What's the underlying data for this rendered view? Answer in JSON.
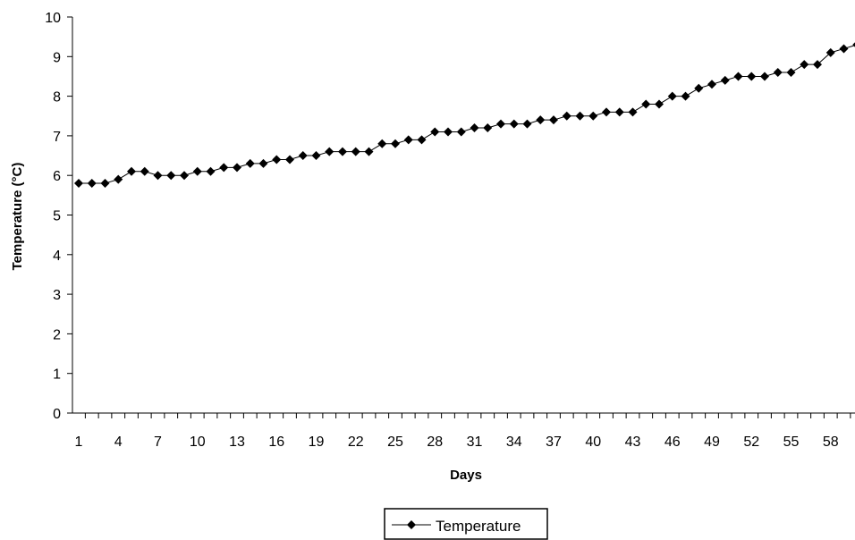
{
  "chart_data": {
    "type": "line",
    "title": "",
    "xlabel": "Days",
    "ylabel": "Temperature (°C)",
    "ylim": [
      0,
      10
    ],
    "yticks": [
      "0",
      "1",
      "2",
      "3",
      "4",
      "5",
      "6",
      "7",
      "8",
      "9",
      "10"
    ],
    "xlim": [
      1,
      60
    ],
    "xtick_values": [
      1,
      4,
      7,
      10,
      13,
      16,
      19,
      22,
      25,
      28,
      31,
      34,
      37,
      40,
      43,
      46,
      49,
      52,
      55,
      58
    ],
    "xtick_labels": [
      "1",
      "4",
      "7",
      "10",
      "13",
      "16",
      "19",
      "22",
      "25",
      "28",
      "31",
      "34",
      "37",
      "40",
      "43",
      "46",
      "49",
      "52",
      "55",
      "58"
    ],
    "grid": false,
    "legend": "bottom-center",
    "series": [
      {
        "name": "Temperature",
        "color": "#000000",
        "marker": "diamond",
        "x": [
          1,
          2,
          3,
          4,
          5,
          6,
          7,
          8,
          9,
          10,
          11,
          12,
          13,
          14,
          15,
          16,
          17,
          18,
          19,
          20,
          21,
          22,
          23,
          24,
          25,
          26,
          27,
          28,
          29,
          30,
          31,
          32,
          33,
          34,
          35,
          36,
          37,
          38,
          39,
          40,
          41,
          42,
          43,
          44,
          45,
          46,
          47,
          48,
          49,
          50,
          51,
          52,
          53,
          54,
          55,
          56,
          57,
          58,
          59,
          60
        ],
        "values": [
          5.8,
          5.8,
          5.8,
          5.9,
          6.1,
          6.1,
          6.0,
          6.0,
          6.0,
          6.1,
          6.1,
          6.2,
          6.2,
          6.3,
          6.3,
          6.4,
          6.4,
          6.5,
          6.5,
          6.6,
          6.6,
          6.6,
          6.6,
          6.8,
          6.8,
          6.9,
          6.9,
          7.1,
          7.1,
          7.1,
          7.2,
          7.2,
          7.3,
          7.3,
          7.3,
          7.4,
          7.4,
          7.5,
          7.5,
          7.5,
          7.6,
          7.6,
          7.6,
          7.8,
          7.8,
          8.0,
          8.0,
          8.2,
          8.3,
          8.4,
          8.5,
          8.5,
          8.5,
          8.6,
          8.6,
          8.8,
          8.8,
          9.1,
          9.2,
          9.3
        ]
      }
    ]
  }
}
